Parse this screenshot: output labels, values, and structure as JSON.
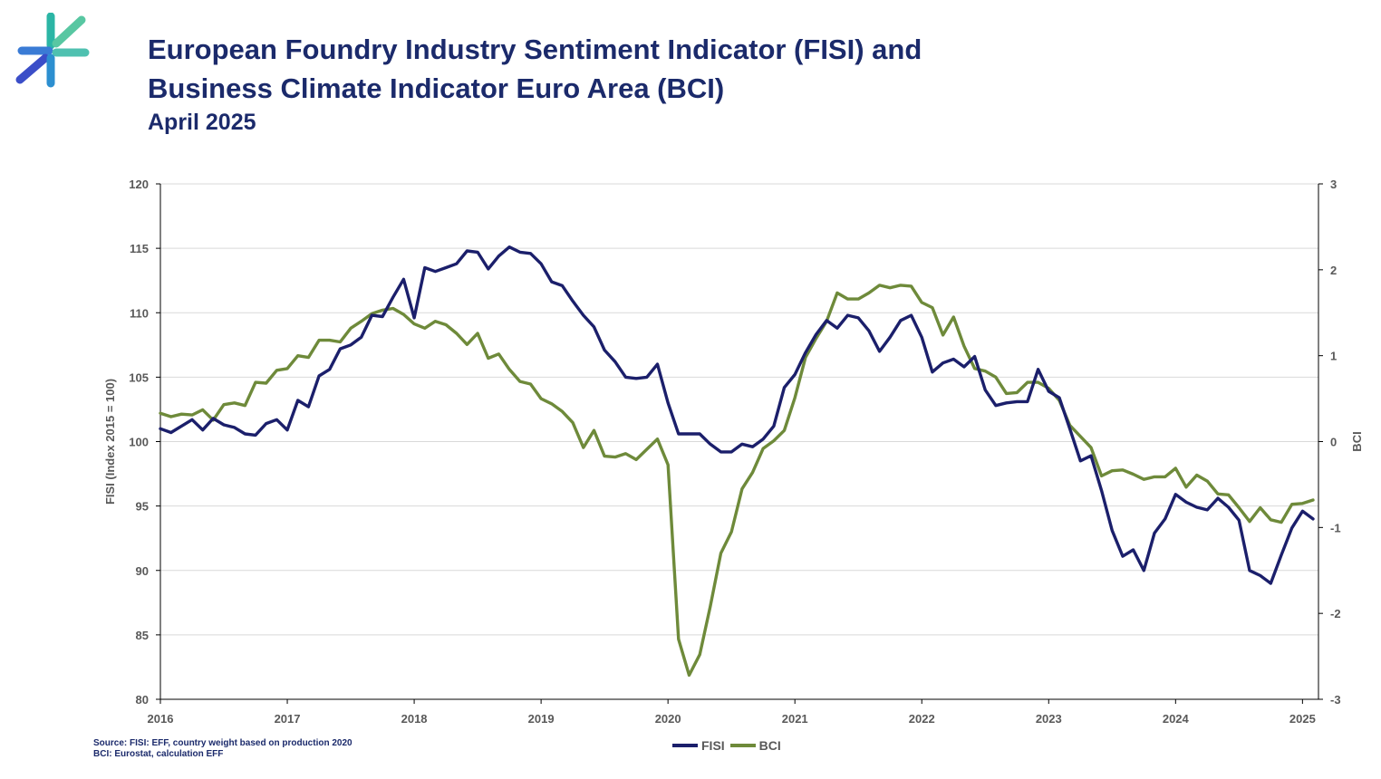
{
  "header": {
    "title_line1": "European Foundry Industry Sentiment Indicator (FISI) and",
    "title_line2": "Business Climate Indicator Euro Area (BCI)",
    "subtitle": "April 2025",
    "logo_icon": "eff-logo-icon"
  },
  "footer": {
    "source_line1": "Source: FISI: EFF, country weight based on production 2020",
    "source_line2": "BCI: Eurostat, calculation EFF"
  },
  "colors": {
    "fisi": "#1b1f6b",
    "bci": "#6e8a3a",
    "grid": "#d9d9d9",
    "axis": "#000000",
    "title": "#1b2a6b"
  },
  "chart_data": {
    "type": "line",
    "title": "European Foundry Industry Sentiment Indicator (FISI) and Business Climate Indicator Euro Area (BCI)",
    "ylabel": "FISI (Index 2015 = 100)",
    "y2label": "BCI",
    "ylim": [
      80,
      120
    ],
    "y2lim": [
      -3,
      3
    ],
    "yticks": [
      80,
      85,
      90,
      95,
      100,
      105,
      110,
      115,
      120
    ],
    "y2ticks": [
      -3,
      -2,
      -1,
      0,
      1,
      2,
      3
    ],
    "xticks": [
      "2016",
      "2017",
      "2018",
      "2019",
      "2020",
      "2021",
      "2022",
      "2023",
      "2024",
      "2025"
    ],
    "grid": true,
    "legend": "bottom-center",
    "x_start": "2016-01",
    "series": [
      {
        "name": "FISI",
        "axis": "left",
        "values": [
          101.0,
          100.7,
          101.2,
          101.7,
          100.9,
          101.8,
          101.3,
          101.1,
          100.6,
          100.5,
          101.4,
          101.7,
          100.9,
          103.2,
          102.7,
          105.1,
          105.6,
          107.2,
          107.5,
          108.1,
          109.8,
          109.7,
          111.2,
          112.6,
          109.6,
          113.5,
          113.2,
          113.5,
          113.8,
          114.8,
          114.7,
          113.4,
          114.4,
          115.1,
          114.7,
          114.6,
          113.8,
          112.4,
          112.1,
          110.9,
          109.8,
          108.9,
          107.1,
          106.2,
          105.0,
          104.9,
          105.0,
          106.0,
          103.0,
          100.6,
          100.6,
          100.6,
          99.8,
          99.2,
          99.2,
          99.8,
          99.6,
          100.2,
          101.2,
          104.2,
          105.2,
          106.9,
          108.3,
          109.4,
          108.8,
          109.8,
          109.6,
          108.6,
          107.0,
          108.1,
          109.4,
          109.8,
          108.1,
          105.4,
          106.1,
          106.4,
          105.8,
          106.6,
          104.0,
          102.8,
          103.0,
          103.1,
          103.1,
          105.6,
          103.9,
          103.4,
          101.0,
          98.5,
          98.9,
          96.2,
          93.1,
          91.1,
          91.6,
          90.0,
          92.9,
          94.0,
          95.9,
          95.3,
          94.9,
          94.7,
          95.6,
          94.9,
          93.9,
          90.0,
          89.6,
          89.0,
          91.2,
          93.3,
          94.6,
          94.0
        ]
      },
      {
        "name": "BCI",
        "axis": "right",
        "values": [
          0.33,
          0.29,
          0.32,
          0.31,
          0.37,
          0.25,
          0.43,
          0.45,
          0.42,
          0.69,
          0.68,
          0.83,
          0.85,
          1.0,
          0.98,
          1.18,
          1.18,
          1.16,
          1.32,
          1.4,
          1.49,
          1.53,
          1.55,
          1.48,
          1.37,
          1.32,
          1.4,
          1.36,
          1.26,
          1.13,
          1.26,
          0.97,
          1.02,
          0.84,
          0.7,
          0.67,
          0.5,
          0.44,
          0.35,
          0.22,
          -0.07,
          0.13,
          -0.17,
          -0.18,
          -0.14,
          -0.21,
          -0.09,
          0.03,
          -0.27,
          -2.3,
          -2.72,
          -2.48,
          -1.92,
          -1.3,
          -1.05,
          -0.55,
          -0.36,
          -0.08,
          0.01,
          0.13,
          0.51,
          0.98,
          1.2,
          1.4,
          1.73,
          1.66,
          1.66,
          1.73,
          1.82,
          1.79,
          1.82,
          1.81,
          1.62,
          1.56,
          1.24,
          1.45,
          1.11,
          0.85,
          0.82,
          0.75,
          0.56,
          0.57,
          0.69,
          0.69,
          0.62,
          0.48,
          0.19,
          0.06,
          -0.07,
          -0.4,
          -0.34,
          -0.33,
          -0.38,
          -0.44,
          -0.41,
          -0.41,
          -0.31,
          -0.53,
          -0.39,
          -0.46,
          -0.61,
          -0.62,
          -0.77,
          -0.93,
          -0.77,
          -0.91,
          -0.94,
          -0.73,
          -0.72,
          -0.68
        ]
      }
    ]
  }
}
